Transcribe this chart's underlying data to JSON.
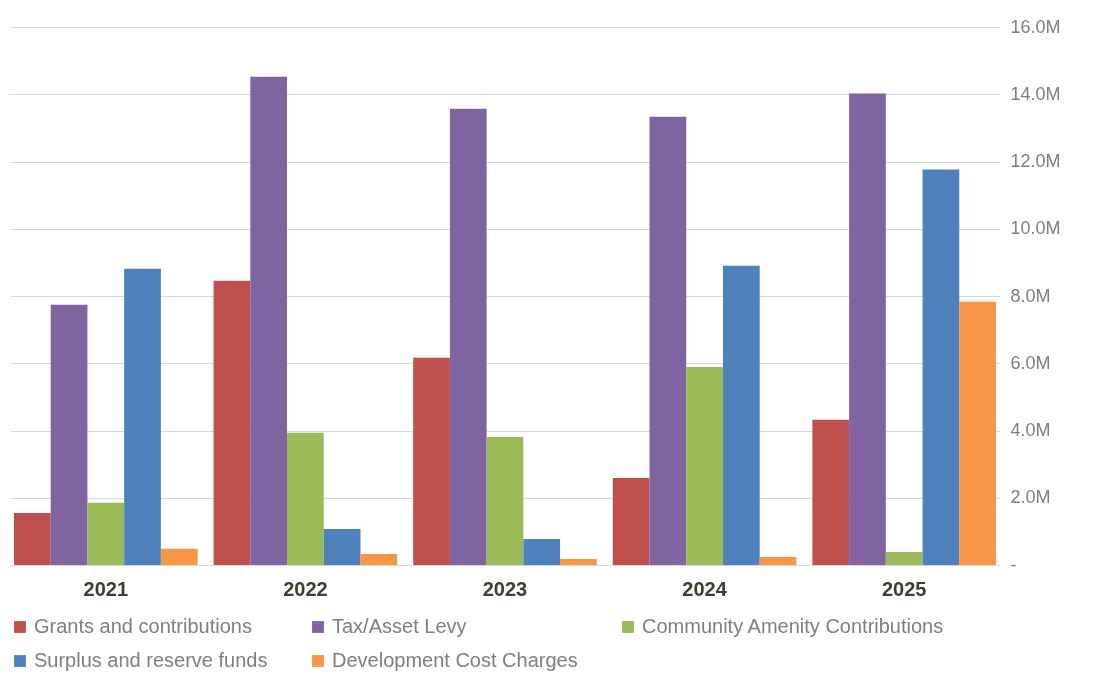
{
  "chart_data": {
    "type": "bar",
    "categories": [
      "2021",
      "2022",
      "2023",
      "2024",
      "2025"
    ],
    "series": [
      {
        "name": "Grants and contributions",
        "color": "#c0504d",
        "values": [
          1.55,
          8.45,
          6.16,
          2.59,
          4.32
        ]
      },
      {
        "name": "Tax/Asset Levy",
        "color": "#8064a2",
        "values": [
          7.74,
          14.52,
          13.57,
          13.33,
          14.02
        ]
      },
      {
        "name": "Community Amenity Contributions",
        "color": "#9bbb59",
        "values": [
          1.85,
          3.93,
          3.81,
          5.89,
          0.39
        ]
      },
      {
        "name": "Surplus and reserve funds",
        "color": "#4f81bd",
        "values": [
          8.81,
          1.07,
          0.77,
          8.9,
          11.76
        ]
      },
      {
        "name": "Development Cost Charges",
        "color": "#f79646",
        "values": [
          0.48,
          0.33,
          0.18,
          0.24,
          7.83
        ]
      }
    ],
    "ylim": [
      0,
      16
    ],
    "yticks": [
      {
        "value": 0,
        "label": "-"
      },
      {
        "value": 2,
        "label": "2.0M"
      },
      {
        "value": 4,
        "label": "4.0M"
      },
      {
        "value": 6,
        "label": "6.0M"
      },
      {
        "value": 8,
        "label": "8.0M"
      },
      {
        "value": 10,
        "label": "10.0M"
      },
      {
        "value": 12,
        "label": "12.0M"
      },
      {
        "value": 14,
        "label": "14.0M"
      },
      {
        "value": 16,
        "label": "16.0M"
      }
    ],
    "grid": "y",
    "legend": "bottom"
  }
}
